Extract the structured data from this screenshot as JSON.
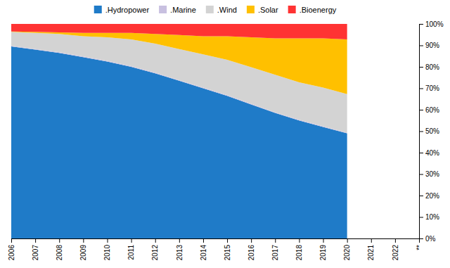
{
  "chart_data": {
    "type": "area",
    "stacked": true,
    "legend": "top",
    "x": [
      2006,
      2007,
      2008,
      2009,
      2010,
      2011,
      2012,
      2013,
      2014,
      2015,
      2016,
      2017,
      2018,
      2019,
      2020
    ],
    "series": [
      {
        "name": ".Hydropower",
        "color": "#1F7BC8",
        "values": [
          89.5,
          88.0,
          86.5,
          84.5,
          82.5,
          80.0,
          77.0,
          73.5,
          70.0,
          66.5,
          62.5,
          58.5,
          55.0,
          52.0,
          49.0
        ]
      },
      {
        "name": ".Marine",
        "color": "#C8C0E0",
        "values": [
          0.3,
          0.3,
          0.3,
          0.3,
          0.3,
          0.3,
          0.3,
          0.3,
          0.3,
          0.3,
          0.3,
          0.3,
          0.3,
          0.3,
          0.3
        ]
      },
      {
        "name": ".Wind",
        "color": "#D3D3D3",
        "values": [
          6.5,
          7.5,
          8.5,
          9.5,
          11.0,
          12.5,
          13.5,
          14.5,
          15.5,
          16.5,
          17.0,
          17.5,
          17.5,
          18.0,
          18.0
        ]
      },
      {
        "name": ".Solar",
        "color": "#FFC000",
        "values": [
          0.2,
          0.5,
          0.8,
          1.5,
          2.0,
          3.0,
          4.5,
          6.5,
          8.5,
          11.0,
          14.0,
          17.0,
          20.5,
          23.0,
          25.5
        ]
      },
      {
        "name": ".Bioenergy",
        "color": "#FF3333",
        "values": [
          3.5,
          3.7,
          3.9,
          4.2,
          4.2,
          4.2,
          4.7,
          5.2,
          5.7,
          5.7,
          6.2,
          6.7,
          6.7,
          6.7,
          7.2
        ]
      }
    ],
    "xlim": [
      2006,
      2023
    ],
    "xticks": [
      2006,
      2007,
      2008,
      2009,
      2010,
      2011,
      2012,
      2013,
      2014,
      2015,
      2016,
      2017,
      2018,
      2019,
      2020,
      2021,
      2022,
      {
        "value": 2023,
        "label": "**"
      }
    ],
    "ylim": [
      0,
      100
    ],
    "yticks": [
      {
        "value": 0,
        "label": "0%"
      },
      {
        "value": 10,
        "label": "10%"
      },
      {
        "value": 20,
        "label": "20%"
      },
      {
        "value": 30,
        "label": "30%"
      },
      {
        "value": 40,
        "label": "40%"
      },
      {
        "value": 50,
        "label": "50%"
      },
      {
        "value": 60,
        "label": "60%"
      },
      {
        "value": 70,
        "label": "70%"
      },
      {
        "value": 80,
        "label": "80%"
      },
      {
        "value": 90,
        "label": "90%"
      },
      {
        "value": 100,
        "label": "100%"
      }
    ]
  }
}
